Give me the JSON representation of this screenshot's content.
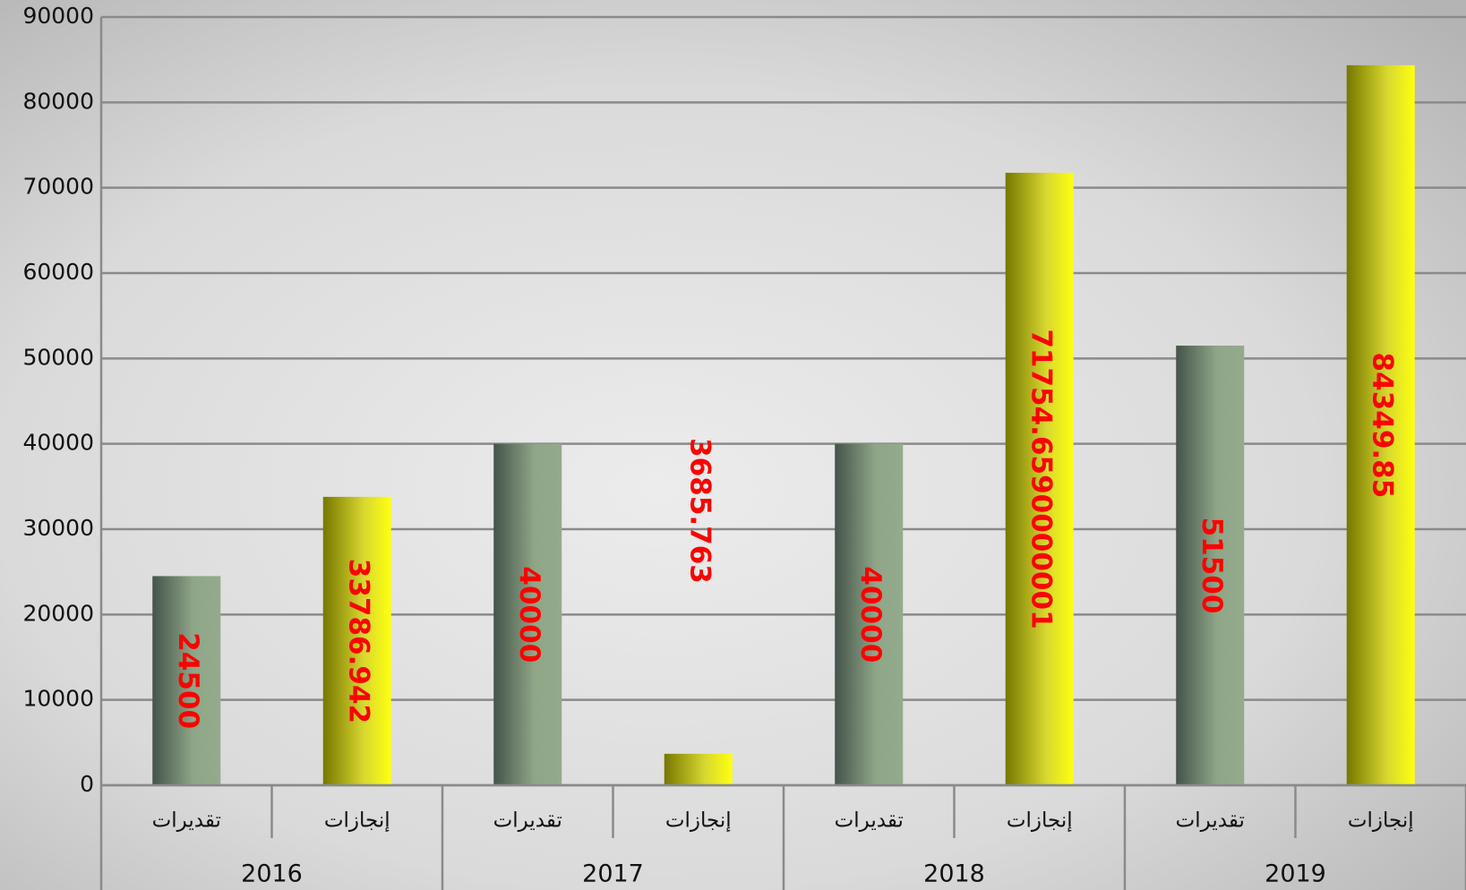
{
  "chart_data": {
    "type": "bar",
    "categories": [
      "2016",
      "2017",
      "2018",
      "2019"
    ],
    "series": [
      {
        "name": "تقديرات",
        "color": "#94aa8c",
        "values": [
          24500,
          40000,
          40000,
          51500
        ]
      },
      {
        "name": "إنجازات",
        "color": "#f4f420",
        "values": [
          33786.942,
          3685.763,
          71754.6590000001,
          84349.85
        ]
      }
    ],
    "ylim": [
      0,
      90000
    ],
    "yticks": [
      0,
      10000,
      20000,
      30000,
      40000,
      50000,
      60000,
      70000,
      80000,
      90000
    ],
    "grid": true
  }
}
